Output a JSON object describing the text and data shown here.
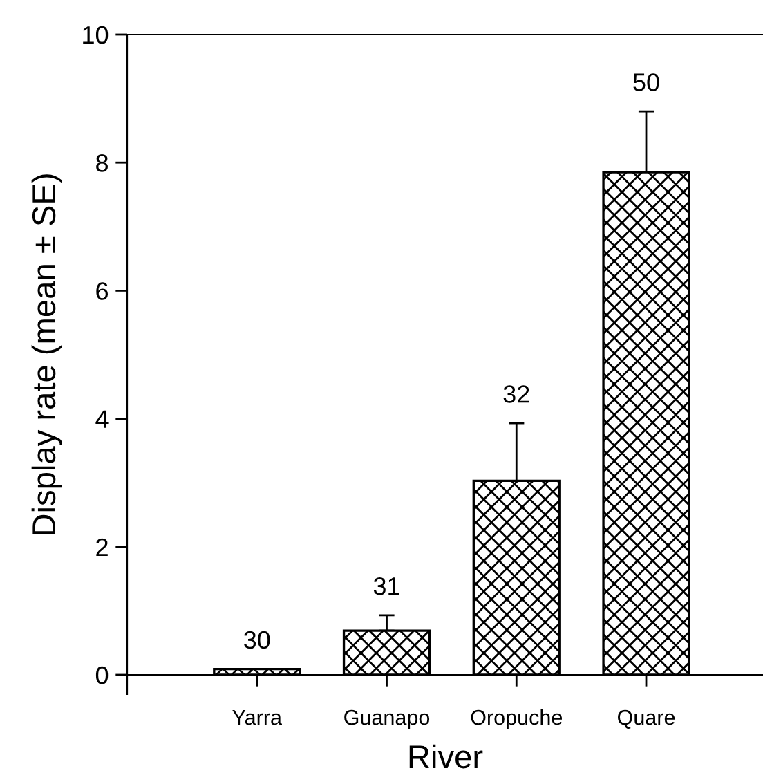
{
  "chart_data": {
    "type": "bar",
    "xlabel": "River",
    "ylabel": "Display rate (mean ± SE)",
    "categories": [
      "Yarra",
      "Guanapo",
      "Oropuche",
      "Quare"
    ],
    "values": [
      0.09,
      0.69,
      3.03,
      7.85
    ],
    "errors": [
      null,
      [
        0.69,
        0.93
      ],
      [
        3.03,
        3.93
      ],
      [
        7.85,
        8.8
      ]
    ],
    "color": "#000000",
    "ylim": [
      0,
      10
    ],
    "yticks": [
      0,
      2,
      4,
      6,
      8,
      10
    ],
    "grid": false,
    "annotations": [
      {
        "text": "30",
        "x": "Yarra",
        "y": 0.09
      },
      {
        "text": "31",
        "x": "Guanapo",
        "y": 0.93
      },
      {
        "text": "32",
        "x": "Oropuche",
        "y": 3.93
      },
      {
        "text": "50",
        "x": "Quare",
        "y": 8.8
      }
    ]
  }
}
